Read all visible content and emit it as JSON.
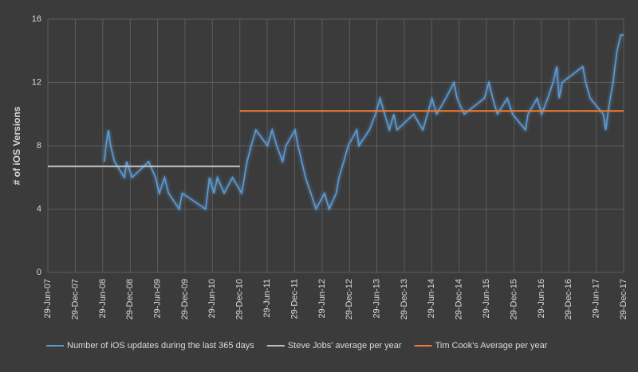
{
  "chart_data": {
    "type": "line",
    "ylabel": "# of iOS Versions",
    "ylim": [
      0,
      16
    ],
    "yticks": [
      0,
      4,
      8,
      12,
      16
    ],
    "xlim": [
      "2007-06-29",
      "2017-12-29"
    ],
    "xticks": [
      {
        "value": "2007-06-29",
        "label": "29-Jun-07"
      },
      {
        "value": "2007-12-29",
        "label": "29-Dec-07"
      },
      {
        "value": "2008-06-29",
        "label": "29-Jun-08"
      },
      {
        "value": "2008-12-29",
        "label": "29-Dec-08"
      },
      {
        "value": "2009-06-29",
        "label": "29-Jun-09"
      },
      {
        "value": "2009-12-29",
        "label": "29-Dec-09"
      },
      {
        "value": "2010-06-29",
        "label": "29-Jun-10"
      },
      {
        "value": "2010-12-29",
        "label": "29-Dec-10"
      },
      {
        "value": "2011-06-29",
        "label": "29-Jun-11"
      },
      {
        "value": "2011-12-29",
        "label": "29-Dec-11"
      },
      {
        "value": "2012-06-29",
        "label": "29-Jun-12"
      },
      {
        "value": "2012-12-29",
        "label": "29-Dec-12"
      },
      {
        "value": "2013-06-29",
        "label": "29-Jun-13"
      },
      {
        "value": "2013-12-29",
        "label": "29-Dec-13"
      },
      {
        "value": "2014-06-29",
        "label": "29-Jun-14"
      },
      {
        "value": "2014-12-29",
        "label": "29-Dec-14"
      },
      {
        "value": "2015-06-29",
        "label": "29-Jun-15"
      },
      {
        "value": "2015-12-29",
        "label": "29-Dec-15"
      },
      {
        "value": "2016-06-29",
        "label": "29-Jun-16"
      },
      {
        "value": "2016-12-29",
        "label": "29-Dec-16"
      },
      {
        "value": "2017-06-29",
        "label": "29-Jun-17"
      },
      {
        "value": "2017-12-29",
        "label": "29-Dec-17"
      }
    ],
    "grid": true,
    "legend": "bottom",
    "series": [
      {
        "name": "Number of iOS updates during the last 365 days",
        "color": "#5b9bd5",
        "x": [
          "2008-07-10",
          "2008-07-20",
          "2008-08-05",
          "2008-08-20",
          "2008-09-15",
          "2008-11-20",
          "2008-12-05",
          "2009-01-10",
          "2009-05-01",
          "2009-06-15",
          "2009-07-10",
          "2009-08-15",
          "2009-09-10",
          "2009-11-20",
          "2009-12-10",
          "2010-05-15",
          "2010-06-10",
          "2010-07-10",
          "2010-08-01",
          "2010-09-15",
          "2010-11-10",
          "2011-01-10",
          "2011-02-15",
          "2011-03-15",
          "2011-04-15",
          "2011-07-01",
          "2011-08-01",
          "2011-09-01",
          "2011-10-10",
          "2011-11-01",
          "2012-01-01",
          "2012-01-20",
          "2012-02-15",
          "2012-03-10",
          "2012-04-15",
          "2012-05-20",
          "2012-07-15",
          "2012-08-15",
          "2012-10-01",
          "2012-10-20",
          "2012-11-20",
          "2012-12-20",
          "2013-02-15",
          "2013-03-01",
          "2013-05-10",
          "2013-06-20",
          "2013-07-20",
          "2013-08-20",
          "2013-09-20",
          "2013-10-20",
          "2013-11-10",
          "2014-03-01",
          "2014-05-01",
          "2014-06-01",
          "2014-07-01",
          "2014-08-01",
          "2014-10-01",
          "2014-11-25",
          "2014-12-15",
          "2015-02-01",
          "2015-06-15",
          "2015-07-15",
          "2015-08-10",
          "2015-09-10",
          "2015-11-15",
          "2015-12-20",
          "2016-03-15",
          "2016-04-01",
          "2016-06-01",
          "2016-07-01",
          "2016-08-10",
          "2016-09-15",
          "2016-10-10",
          "2016-10-25",
          "2016-11-15",
          "2017-04-01",
          "2017-04-20",
          "2017-05-20",
          "2017-08-15",
          "2017-09-01",
          "2017-09-15",
          "2017-10-01",
          "2017-10-20",
          "2017-11-01",
          "2017-11-15",
          "2017-12-10",
          "2017-12-29"
        ],
        "values": [
          7,
          8,
          9,
          8,
          7,
          6,
          7,
          6,
          7,
          6,
          5,
          6,
          5,
          4,
          5,
          4,
          6,
          5,
          6,
          5,
          6,
          5,
          7,
          8,
          9,
          8,
          9,
          8,
          7,
          8,
          9,
          8,
          7,
          6,
          5,
          4,
          5,
          4,
          5,
          6,
          7,
          8,
          9,
          8,
          9,
          10,
          11,
          10,
          9,
          10,
          9,
          10,
          9,
          10,
          11,
          10,
          11,
          12,
          11,
          10,
          11,
          12,
          11,
          10,
          11,
          10,
          9,
          10,
          11,
          10,
          11,
          12,
          13,
          11,
          12,
          13,
          12,
          11,
          10,
          9,
          10,
          11,
          12,
          13,
          14,
          15,
          15
        ]
      },
      {
        "name": "Steve Jobs' average per year",
        "color": "#bfbfbf",
        "x": [
          "2007-06-29",
          "2010-12-29"
        ],
        "values": [
          6.7,
          6.7
        ]
      },
      {
        "name": "Tim Cook's Average per year",
        "color": "#ed7d31",
        "x": [
          "2010-12-29",
          "2017-12-29"
        ],
        "values": [
          10.2,
          10.2
        ]
      }
    ]
  }
}
